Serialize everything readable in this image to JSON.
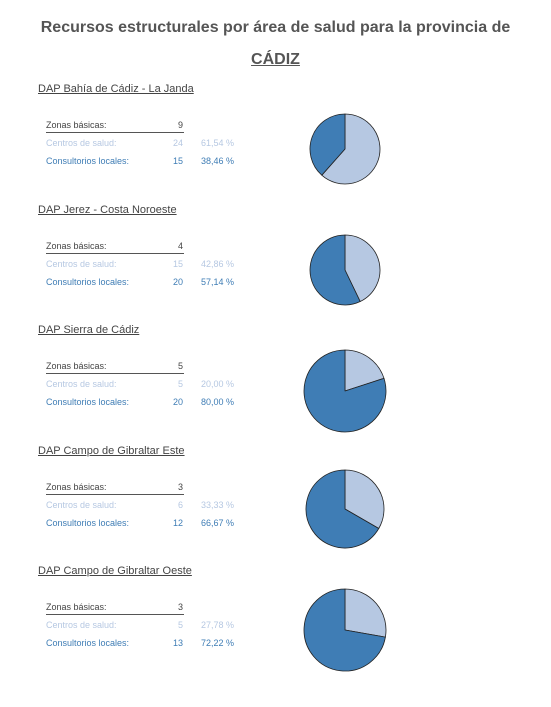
{
  "page": {
    "title_line1": "Recursos estructurales por área de salud para la provincia de",
    "title_line2": "CÁDIZ"
  },
  "labels": {
    "zonas": "Zonas básicas:",
    "centros": "Centros de salud:",
    "consultorios": "Consultorios locales:"
  },
  "colors": {
    "centros": "#b6c8e2",
    "consultorios": "#3f7db5",
    "text": "#444444"
  },
  "areas": [
    {
      "name": "DAP Bahía de Cádiz - La Janda",
      "zonas": "9",
      "centros": "24",
      "centros_pct": "61,54 %",
      "consultorios": "15",
      "consultorios_pct": "38,46 %"
    },
    {
      "name": "DAP Jerez - Costa Noroeste",
      "zonas": "4",
      "centros": "15",
      "centros_pct": "42,86 %",
      "consultorios": "20",
      "consultorios_pct": "57,14 %"
    },
    {
      "name": "DAP Sierra de Cádiz",
      "zonas": "5",
      "centros": "5",
      "centros_pct": "20,00 %",
      "consultorios": "20",
      "consultorios_pct": "80,00 %"
    },
    {
      "name": "DAP Campo de Gibraltar Este",
      "zonas": "3",
      "centros": "6",
      "centros_pct": "33,33 %",
      "consultorios": "12",
      "consultorios_pct": "66,67 %"
    },
    {
      "name": "DAP Campo de Gibraltar Oeste",
      "zonas": "3",
      "centros": "5",
      "centros_pct": "27,78 %",
      "consultorios": "13",
      "consultorios_pct": "72,22 %"
    }
  ],
  "chart_data": [
    {
      "type": "pie",
      "title": "DAP Bahía de Cádiz - La Janda",
      "categories": [
        "Centros de salud",
        "Consultorios locales"
      ],
      "values": [
        24,
        15
      ]
    },
    {
      "type": "pie",
      "title": "DAP Jerez - Costa Noroeste",
      "categories": [
        "Centros de salud",
        "Consultorios locales"
      ],
      "values": [
        15,
        20
      ]
    },
    {
      "type": "pie",
      "title": "DAP Sierra de Cádiz",
      "categories": [
        "Centros de salud",
        "Consultorios locales"
      ],
      "values": [
        5,
        20
      ]
    },
    {
      "type": "pie",
      "title": "DAP Campo de Gibraltar Este",
      "categories": [
        "Centros de salud",
        "Consultorios locales"
      ],
      "values": [
        6,
        12
      ]
    },
    {
      "type": "pie",
      "title": "DAP Campo de Gibraltar Oeste",
      "categories": [
        "Centros de salud",
        "Consultorios locales"
      ],
      "values": [
        5,
        13
      ]
    }
  ]
}
